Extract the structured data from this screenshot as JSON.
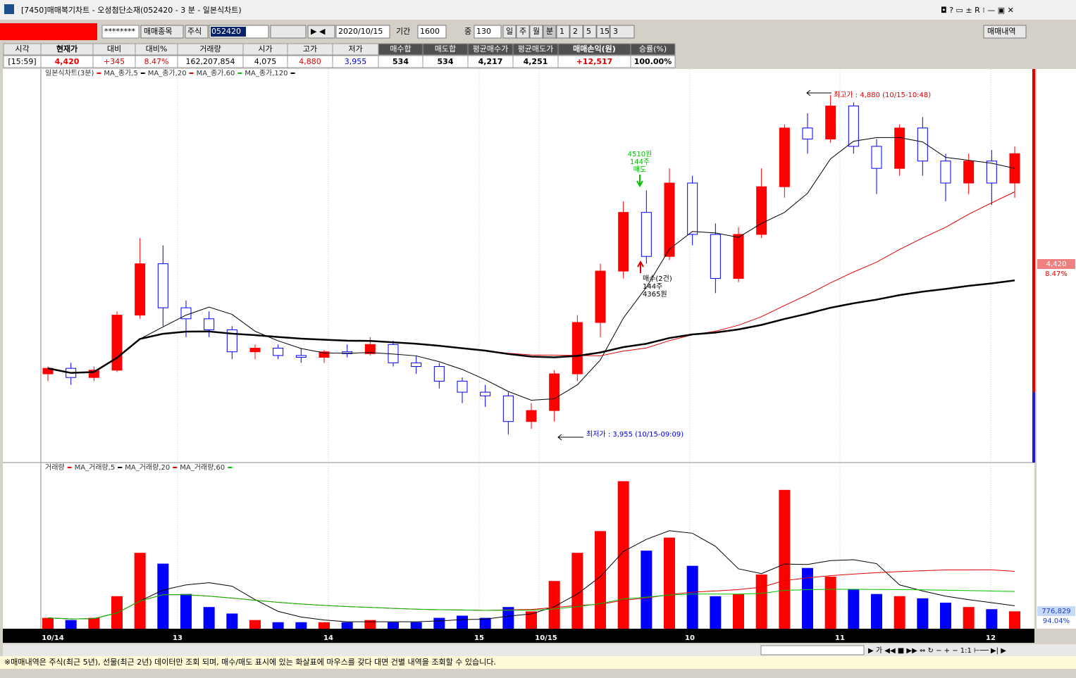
{
  "window": {
    "title": "[7450]매매복기차트 - 오성첨단소재(052420 - 3 분 - 일본식차트)"
  },
  "toolbar": {
    "password": "********",
    "trade_item": "매매종목",
    "market": "주식",
    "code": "052420",
    "date": "2020/10/15",
    "period_label": "기간",
    "period": "1600",
    "zoom_label": "중",
    "zoom": "130",
    "units": [
      "일",
      "주",
      "월",
      "분",
      "1",
      "2",
      "5",
      "15",
      "3"
    ],
    "history_button": "매매내역"
  },
  "summary": {
    "headers": [
      "시각",
      "현재가",
      "대비",
      "대비%",
      "거래량",
      "시가",
      "고가",
      "저가",
      "매수합",
      "매도합",
      "평균매수가",
      "평균매도가",
      "매매손익(원)",
      "승률(%)"
    ],
    "values": [
      "[15:59]",
      "4,420",
      "+345",
      "8.47%",
      "162,207,854",
      "4,075",
      "4,880",
      "3,955",
      "534",
      "534",
      "4,217",
      "4,251",
      "+12,517",
      "100.00%"
    ]
  },
  "chart": {
    "price_title": "일본식차트(3분)",
    "price_ma": [
      {
        "label": "MA_종가,5",
        "period": 5,
        "color": "#000000",
        "width": 1
      },
      {
        "label": "MA_종가,20",
        "period": 20,
        "color": "#e00000",
        "width": 1
      },
      {
        "label": "MA_종가,60",
        "period": 60,
        "color": "#00c000",
        "width": 1
      },
      {
        "label": "MA_종가,120",
        "period": 120,
        "color": "#000000",
        "width": 2.5
      }
    ],
    "volume_title": "거래량",
    "volume_ma": [
      {
        "label": "MA_거래량,5",
        "period": 5,
        "color": "#000000"
      },
      {
        "label": "MA_거래량,20",
        "period": 20,
        "color": "#e00000"
      },
      {
        "label": "MA_거래량,60",
        "period": 60,
        "color": "#00c000"
      }
    ],
    "candles": {
      "open": [
        4120,
        4135,
        4110,
        4130,
        4280,
        4420,
        4300,
        4270,
        4240,
        4180,
        4190,
        4170,
        4165,
        4180,
        4175,
        4200,
        4150,
        4140,
        4100,
        4070,
        4060,
        3990,
        4020,
        4120,
        4260,
        4400,
        4560,
        4440,
        4640,
        4500,
        4380,
        4500,
        4630,
        4790,
        4760,
        4850,
        4740,
        4680,
        4790,
        4700,
        4640,
        4700,
        4640
      ],
      "high": [
        4140,
        4150,
        4140,
        4290,
        4490,
        4470,
        4320,
        4290,
        4250,
        4200,
        4200,
        4190,
        4185,
        4200,
        4220,
        4210,
        4170,
        4150,
        4110,
        4090,
        4070,
        4040,
        4130,
        4280,
        4420,
        4590,
        4620,
        4680,
        4660,
        4530,
        4520,
        4680,
        4800,
        4830,
        4880,
        4860,
        4760,
        4800,
        4820,
        4720,
        4720,
        4730,
        4740
      ],
      "low": [
        4100,
        4090,
        4100,
        4125,
        4270,
        4250,
        4220,
        4220,
        4160,
        4160,
        4160,
        4150,
        4150,
        4165,
        4170,
        4140,
        4120,
        4080,
        4040,
        4030,
        3955,
        3970,
        3990,
        4100,
        4220,
        4380,
        4420,
        4430,
        4470,
        4340,
        4370,
        4490,
        4600,
        4720,
        4750,
        4720,
        4610,
        4660,
        4660,
        4590,
        4610,
        4580,
        4600
      ],
      "close": [
        4135,
        4110,
        4130,
        4280,
        4420,
        4300,
        4270,
        4240,
        4180,
        4190,
        4170,
        4165,
        4180,
        4175,
        4200,
        4150,
        4140,
        4100,
        4070,
        4060,
        3990,
        4020,
        4120,
        4260,
        4400,
        4560,
        4440,
        4640,
        4500,
        4380,
        4500,
        4630,
        4790,
        4760,
        4850,
        4740,
        4680,
        4790,
        4700,
        4640,
        4700,
        4640,
        4720
      ]
    },
    "volumes": [
      500000,
      400000,
      500000,
      1500000,
      3500000,
      3000000,
      1600000,
      1000000,
      700000,
      400000,
      300000,
      300000,
      300000,
      300000,
      400000,
      300000,
      300000,
      500000,
      600000,
      500000,
      1000000,
      800000,
      2200000,
      3500000,
      4500000,
      6800000,
      3600000,
      4200000,
      2900000,
      1500000,
      1600000,
      2500000,
      6400000,
      2800000,
      2400000,
      1800000,
      1600000,
      1500000,
      1400000,
      1200000,
      1000000,
      900000,
      800000
    ],
    "ylim": [
      3882,
      4947
    ],
    "vol_ylim": [
      0,
      7400000
    ],
    "up_color": "#ff0000",
    "down_color": "#0000ff",
    "high_note": "최고가 : 4,880 (10/15-10:48)",
    "low_note": "최저가 : 3,955 (10/15-09:09)",
    "sell_note": [
      "4510원",
      "144주",
      "매도"
    ],
    "buy_note": [
      "매수(2건)",
      "144주",
      "4365원"
    ],
    "date_labels": [
      "10/14",
      "13",
      "14",
      "15",
      "10/15",
      "10",
      "11",
      "12"
    ],
    "price_tag": "4,420",
    "price_pct": "8.47%",
    "vol_tag": "776,829",
    "vol_pct": "94.04%"
  },
  "status": "※매매내역은 주식(최근 5년), 선물(최근 2년) 데이터만 조회 되며, 매수/매도 표시에 있는 화살표에 마우스를 갖다 대면 건별 내역을 조회할 수 있습니다."
}
